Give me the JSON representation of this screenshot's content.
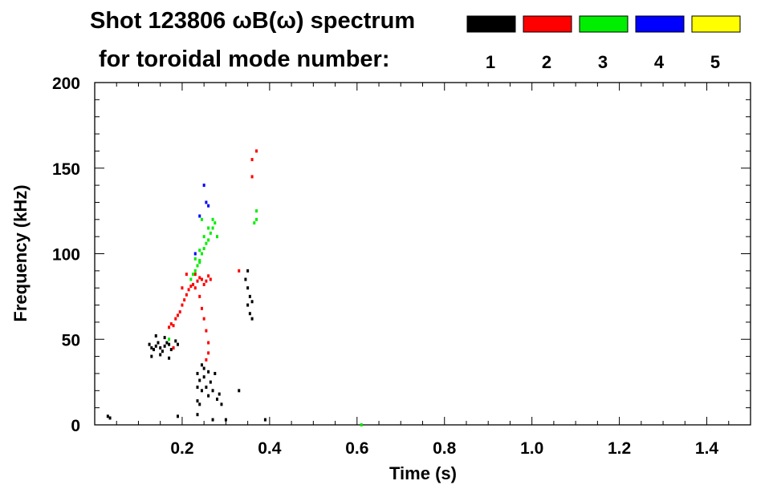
{
  "header": {
    "title_line1": "Shot 123806 ωB(ω) spectrum",
    "title_line2": "for toroidal mode number:"
  },
  "legend": [
    {
      "label": "1",
      "color": "#000000"
    },
    {
      "label": "2",
      "color": "#ff0000"
    },
    {
      "label": "3",
      "color": "#00ee00"
    },
    {
      "label": "4",
      "color": "#0000ff"
    },
    {
      "label": "5",
      "color": "#ffff00"
    }
  ],
  "chart_data": {
    "type": "scatter",
    "title": "Shot 123806 ωB(ω) spectrum",
    "xlabel": "Time (s)",
    "ylabel": "Frequency (kHz)",
    "xlim": [
      0.0,
      1.5
    ],
    "ylim": [
      0,
      200
    ],
    "xticks": [
      0.2,
      0.4,
      0.6,
      0.8,
      1.0,
      1.2,
      1.4
    ],
    "xtick_labels": [
      "0.2",
      "0.4",
      "0.6",
      "0.8",
      "1.0",
      "1.2",
      "1.4"
    ],
    "yticks": [
      0,
      50,
      100,
      150,
      200
    ],
    "ytick_labels": [
      "0",
      "50",
      "100",
      "150",
      "200"
    ],
    "grid": false,
    "legend_position": "top-right",
    "series": [
      {
        "name": "1",
        "color": "#000000",
        "points": [
          [
            0.03,
            5
          ],
          [
            0.035,
            4
          ],
          [
            0.125,
            47
          ],
          [
            0.13,
            45
          ],
          [
            0.135,
            44
          ],
          [
            0.14,
            46
          ],
          [
            0.145,
            48
          ],
          [
            0.15,
            45
          ],
          [
            0.155,
            43
          ],
          [
            0.16,
            46
          ],
          [
            0.165,
            48
          ],
          [
            0.17,
            47
          ],
          [
            0.175,
            44
          ],
          [
            0.18,
            45
          ],
          [
            0.185,
            49
          ],
          [
            0.19,
            47
          ],
          [
            0.13,
            40
          ],
          [
            0.15,
            41
          ],
          [
            0.17,
            39
          ],
          [
            0.16,
            51
          ],
          [
            0.14,
            52
          ],
          [
            0.235,
            30
          ],
          [
            0.235,
            22
          ],
          [
            0.235,
            14
          ],
          [
            0.235,
            6
          ],
          [
            0.24,
            26
          ],
          [
            0.24,
            12
          ],
          [
            0.245,
            35
          ],
          [
            0.245,
            20
          ],
          [
            0.25,
            33
          ],
          [
            0.25,
            28
          ],
          [
            0.255,
            22
          ],
          [
            0.26,
            31
          ],
          [
            0.26,
            17
          ],
          [
            0.265,
            25
          ],
          [
            0.27,
            20
          ],
          [
            0.275,
            30
          ],
          [
            0.28,
            15
          ],
          [
            0.285,
            18
          ],
          [
            0.29,
            12
          ],
          [
            0.3,
            3
          ],
          [
            0.345,
            85
          ],
          [
            0.35,
            80
          ],
          [
            0.35,
            70
          ],
          [
            0.355,
            75
          ],
          [
            0.355,
            65
          ],
          [
            0.36,
            72
          ],
          [
            0.36,
            62
          ],
          [
            0.35,
            90
          ],
          [
            0.33,
            20
          ],
          [
            0.39,
            3
          ],
          [
            0.19,
            5
          ],
          [
            0.27,
            3
          ]
        ]
      },
      {
        "name": "2",
        "color": "#ff0000",
        "points": [
          [
            0.17,
            57
          ],
          [
            0.175,
            59
          ],
          [
            0.18,
            58
          ],
          [
            0.185,
            62
          ],
          [
            0.19,
            64
          ],
          [
            0.195,
            66
          ],
          [
            0.2,
            70
          ],
          [
            0.205,
            73
          ],
          [
            0.21,
            76
          ],
          [
            0.215,
            79
          ],
          [
            0.22,
            81
          ],
          [
            0.225,
            82
          ],
          [
            0.23,
            80
          ],
          [
            0.235,
            84
          ],
          [
            0.24,
            86
          ],
          [
            0.245,
            85
          ],
          [
            0.25,
            82
          ],
          [
            0.255,
            84
          ],
          [
            0.26,
            87
          ],
          [
            0.265,
            85
          ],
          [
            0.24,
            75
          ],
          [
            0.245,
            68
          ],
          [
            0.25,
            62
          ],
          [
            0.255,
            55
          ],
          [
            0.26,
            48
          ],
          [
            0.26,
            42
          ],
          [
            0.255,
            38
          ],
          [
            0.2,
            80
          ],
          [
            0.21,
            88
          ],
          [
            0.23,
            88
          ],
          [
            0.18,
            45
          ],
          [
            0.37,
            160
          ],
          [
            0.36,
            155
          ],
          [
            0.36,
            145
          ],
          [
            0.33,
            90
          ]
        ]
      },
      {
        "name": "3",
        "color": "#00ee00",
        "points": [
          [
            0.22,
            85
          ],
          [
            0.225,
            88
          ],
          [
            0.23,
            90
          ],
          [
            0.235,
            93
          ],
          [
            0.24,
            96
          ],
          [
            0.245,
            100
          ],
          [
            0.25,
            103
          ],
          [
            0.255,
            106
          ],
          [
            0.26,
            108
          ],
          [
            0.265,
            112
          ],
          [
            0.27,
            115
          ],
          [
            0.275,
            118
          ],
          [
            0.23,
            97
          ],
          [
            0.24,
            102
          ],
          [
            0.25,
            110
          ],
          [
            0.26,
            115
          ],
          [
            0.27,
            120
          ],
          [
            0.245,
            120
          ],
          [
            0.24,
            95
          ],
          [
            0.28,
            110
          ],
          [
            0.37,
            125
          ],
          [
            0.37,
            120
          ],
          [
            0.365,
            118
          ],
          [
            0.61,
            0
          ],
          [
            0.17,
            50
          ]
        ]
      },
      {
        "name": "4",
        "color": "#0000ff",
        "points": [
          [
            0.255,
            130
          ],
          [
            0.26,
            128
          ],
          [
            0.24,
            122
          ],
          [
            0.25,
            140
          ],
          [
            0.23,
            100
          ]
        ]
      },
      {
        "name": "5",
        "color": "#ffff00",
        "points": []
      }
    ]
  }
}
